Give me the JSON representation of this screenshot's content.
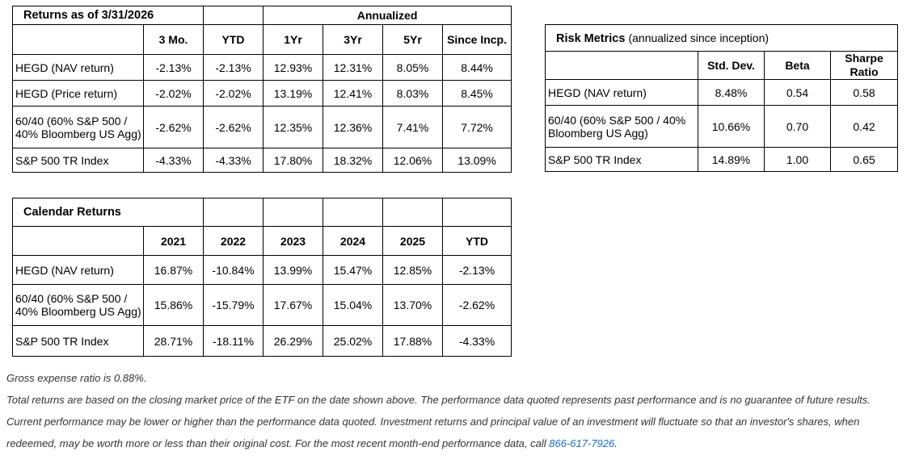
{
  "returns_table": {
    "title": "Returns as of 3/31/2026",
    "group_header": "Annualized",
    "columns": [
      "3 Mo.",
      "YTD",
      "1Yr",
      "3Yr",
      "5Yr",
      "Since Incp."
    ],
    "rows": [
      {
        "label": "HEGD (NAV return)",
        "values": [
          "-2.13%",
          "-2.13%",
          "12.93%",
          "12.31%",
          "8.05%",
          "8.44%"
        ]
      },
      {
        "label": "HEGD (Price return)",
        "values": [
          "-2.02%",
          "-2.02%",
          "13.19%",
          "12.41%",
          "8.03%",
          "8.45%"
        ]
      },
      {
        "label": "60/40 (60% S&P 500 / 40% Bloomberg US Agg)",
        "values": [
          "-2.62%",
          "-2.62%",
          "12.35%",
          "12.36%",
          "7.41%",
          "7.72%"
        ]
      },
      {
        "label": "S&P 500 TR Index",
        "values": [
          "-4.33%",
          "-4.33%",
          "17.80%",
          "18.32%",
          "12.06%",
          "13.09%"
        ]
      }
    ]
  },
  "risk_table": {
    "title": "Risk Metrics",
    "subtitle": "(annualized since inception)",
    "columns": [
      "Std. Dev.",
      "Beta",
      "Sharpe Ratio"
    ],
    "rows": [
      {
        "label": "HEGD (NAV return)",
        "values": [
          "8.48%",
          "0.54",
          "0.58"
        ]
      },
      {
        "label": "60/40 (60% S&P 500 / 40% Bloomberg US Agg)",
        "values": [
          "10.66%",
          "0.70",
          "0.42"
        ]
      },
      {
        "label": "S&P 500 TR Index",
        "values": [
          "14.89%",
          "1.00",
          "0.65"
        ]
      }
    ]
  },
  "calendar_table": {
    "title": "Calendar Returns",
    "columns": [
      "2021",
      "2022",
      "2023",
      "2024",
      "2025",
      "YTD"
    ],
    "rows": [
      {
        "label": "HEGD (NAV return)",
        "values": [
          "16.87%",
          "-10.84%",
          "13.99%",
          "15.47%",
          "12.85%",
          "-2.13%"
        ]
      },
      {
        "label": "60/40 (60% S&P 500 / 40% Bloomberg US Agg)",
        "values": [
          "15.86%",
          "-15.79%",
          "17.67%",
          "15.04%",
          "13.70%",
          "-2.62%"
        ]
      },
      {
        "label": "S&P 500 TR Index",
        "values": [
          "28.71%",
          "-18.11%",
          "26.29%",
          "25.02%",
          "17.88%",
          "-4.33%"
        ]
      }
    ]
  },
  "notes": {
    "expense": "Gross expense ratio is 0.88%.",
    "disclaimer": "Total returns are based on the closing market price of the ETF on the date shown above. The performance data quoted represents past performance and is no guarantee of future results. Current performance may be lower or higher than the performance data quoted. Investment returns and principal value of an investment will fluctuate so that an investor's shares, when redeemed, may be worth more or less than their original cost. For the most recent month-end performance data,  call",
    "phone": "866-617-7926",
    "phone_suffix": "."
  }
}
